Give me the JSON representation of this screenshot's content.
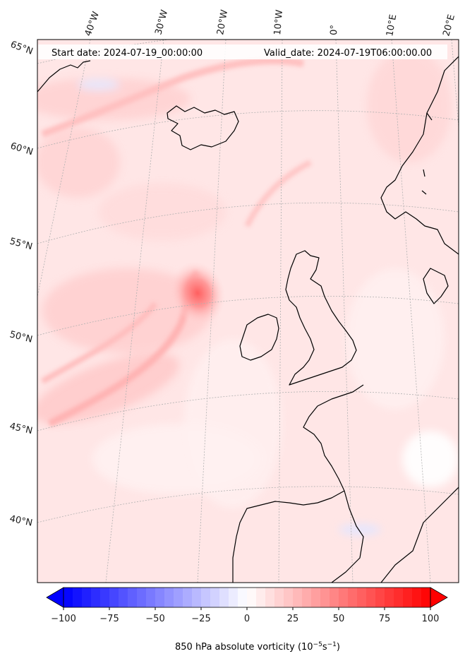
{
  "header": {
    "start_date": "Start date: 2024-07-19_00:00:00",
    "valid_date": "Valid_date: 2024-07-19T06:00:00.00"
  },
  "map": {
    "longitude_labels": [
      "40°W",
      "30°W",
      "20°W",
      "10°W",
      "0°",
      "10°E",
      "20°E"
    ],
    "latitude_labels": [
      "65°N",
      "60°N",
      "55°N",
      "50°N",
      "45°N",
      "40°N"
    ],
    "coastline_color": "#000000",
    "gridline_color": "#b0b0b0"
  },
  "colorbar": {
    "tick_labels": [
      "−100",
      "−75",
      "−50",
      "−25",
      "0",
      "25",
      "50",
      "75",
      "100"
    ],
    "min": -100,
    "max": 100,
    "ticks": [
      -100,
      -75,
      -50,
      -25,
      0,
      25,
      50,
      75,
      100
    ],
    "low_color": "#0000ff",
    "mid_color": "#ffffff",
    "high_color": "#ff0000"
  }
}
